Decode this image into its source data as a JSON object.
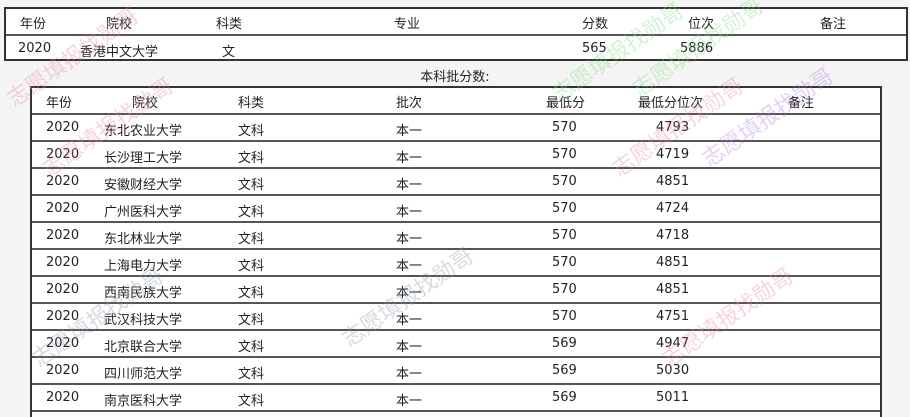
{
  "top_table": {
    "headers": [
      "年份",
      "院校",
      "科类",
      "专业",
      "分数",
      "位次",
      "备注"
    ],
    "rows": [
      [
        "2020",
        "香港中文大学",
        "文",
        "",
        "565",
        "5886",
        ""
      ]
    ]
  },
  "caption": "本科批分数:",
  "batch_table": {
    "headers": [
      "年份",
      "院校",
      "科类",
      "批次",
      "最低分",
      "最低分位次",
      "备注"
    ],
    "rows": [
      [
        "2020",
        "东北农业大学",
        "文科",
        "本一",
        "570",
        "4793",
        ""
      ],
      [
        "2020",
        "长沙理工大学",
        "文科",
        "本一",
        "570",
        "4719",
        ""
      ],
      [
        "2020",
        "安徽财经大学",
        "文科",
        "本一",
        "570",
        "4851",
        ""
      ],
      [
        "2020",
        "广州医科大学",
        "文科",
        "本一",
        "570",
        "4724",
        ""
      ],
      [
        "2020",
        "东北林业大学",
        "文科",
        "本一",
        "570",
        "4718",
        ""
      ],
      [
        "2020",
        "上海电力大学",
        "文科",
        "本一",
        "570",
        "4851",
        ""
      ],
      [
        "2020",
        "西南民族大学",
        "文科",
        "本一",
        "570",
        "4851",
        ""
      ],
      [
        "2020",
        "武汉科技大学",
        "文科",
        "本一",
        "570",
        "4751",
        ""
      ],
      [
        "2020",
        "北京联合大学",
        "文科",
        "本一",
        "569",
        "4947",
        ""
      ],
      [
        "2020",
        "四川师范大学",
        "文科",
        "本一",
        "569",
        "5030",
        ""
      ],
      [
        "2020",
        "南京医科大学",
        "文科",
        "本一",
        "569",
        "5011",
        ""
      ]
    ]
  },
  "watermark": "志愿填报找勋哥",
  "colors": {
    "watermark_red": "#e58a9a",
    "watermark_green": "#7fdc7f",
    "watermark_purple": "#b27de0",
    "watermark_gray": "#8a9aa8"
  }
}
